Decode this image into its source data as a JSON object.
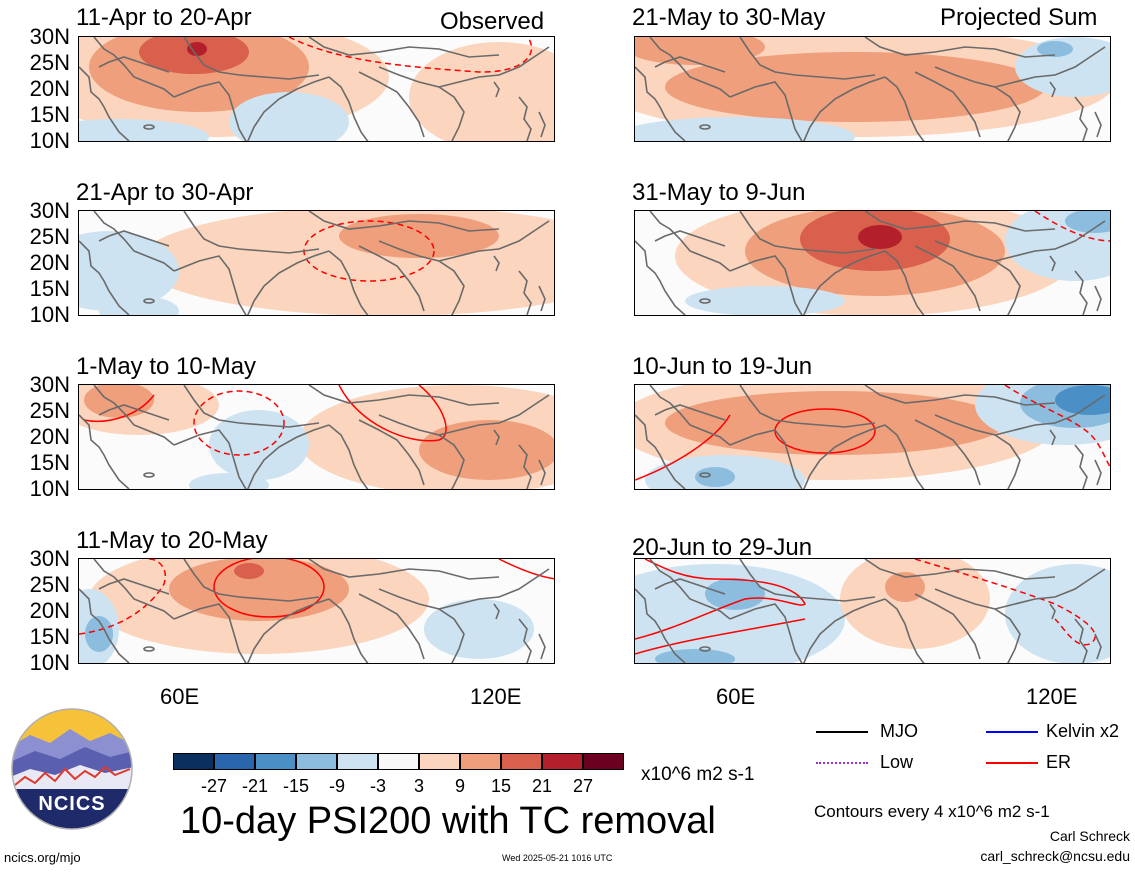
{
  "panels": [
    {
      "title": "11-Apr to 20-Apr",
      "tag": "Observed"
    },
    {
      "title": "21-Apr to 30-Apr",
      "tag": ""
    },
    {
      "title": "1-May to 10-May",
      "tag": ""
    },
    {
      "title": "11-May to 20-May",
      "tag": ""
    },
    {
      "title": "21-May to 30-May",
      "tag": "Projected Sum"
    },
    {
      "title": "31-May to 9-Jun",
      "tag": ""
    },
    {
      "title": "10-Jun to 19-Jun",
      "tag": ""
    },
    {
      "title": "20-Jun to 29-Jun",
      "tag": ""
    }
  ],
  "lat_labels": [
    "30N",
    "25N",
    "20N",
    "15N",
    "10N"
  ],
  "lon_labels": [
    "60E",
    "120E"
  ],
  "colorbar": {
    "labels": [
      "-27",
      "-21",
      "-15",
      "-9",
      "-3",
      "3",
      "9",
      "15",
      "21",
      "27"
    ],
    "colors": [
      "#0a3060",
      "#2a66ae",
      "#4a8fc6",
      "#8cbcde",
      "#cde3f1",
      "#f8f8f8",
      "#fbd5bd",
      "#ef9f7c",
      "#d8604c",
      "#b3202c",
      "#6b0020"
    ],
    "units": "x10^6 m2 s-1"
  },
  "main_title": "10-day PSI200 with TC removal",
  "logo_text": "NCICS",
  "legend": [
    {
      "label": "MJO",
      "color": "#000000",
      "style": "solid"
    },
    {
      "label": "Kelvin x2",
      "color": "#0000ff",
      "style": "solid"
    },
    {
      "label": "Low",
      "color": "#9b30d0",
      "style": "dotted"
    },
    {
      "label": "ER",
      "color": "#ff0000",
      "style": "solid"
    }
  ],
  "contour_note": "Contours every 4 x10^6 m2 s-1",
  "author": "Carl Schreck",
  "email": "carl_schreck@ncsu.edu",
  "site": "ncics.org/mjo",
  "timestamp": "Wed 2025-05-21 1016 UTC"
}
